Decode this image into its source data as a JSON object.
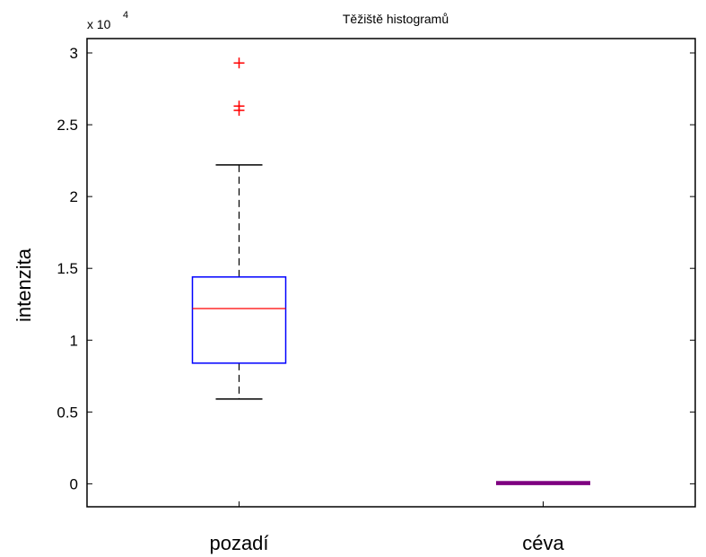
{
  "chart_data": {
    "type": "box",
    "title": "Těžiště histogramů",
    "xlabel": "",
    "ylabel": "intenzita",
    "y_exponent_label": "x 10",
    "y_exponent_power": "4",
    "ylim": [
      -1600,
      31000
    ],
    "yticks": [
      0,
      5000,
      10000,
      15000,
      20000,
      25000,
      30000
    ],
    "ytick_labels": [
      "0",
      "0.5",
      "1",
      "1.5",
      "2",
      "2.5",
      "3"
    ],
    "categories": [
      "pozadí",
      "céva"
    ],
    "boxes": [
      {
        "category": "pozadí",
        "whisker_low": 5900,
        "q1": 8400,
        "median": 12200,
        "q3": 14400,
        "whisker_high": 22200,
        "outliers": [
          26000,
          26300,
          29300
        ]
      },
      {
        "category": "céva",
        "whisker_low": 0,
        "q1": 0,
        "median": 50,
        "q3": 100,
        "whisker_high": 100,
        "outliers": []
      }
    ],
    "colors": {
      "box": "#0000ff",
      "median": "#ff0000",
      "whisker": "#000000",
      "outlier": "#ff0000",
      "flat_box": "#7f0080"
    },
    "grid": false,
    "legend": "none"
  }
}
